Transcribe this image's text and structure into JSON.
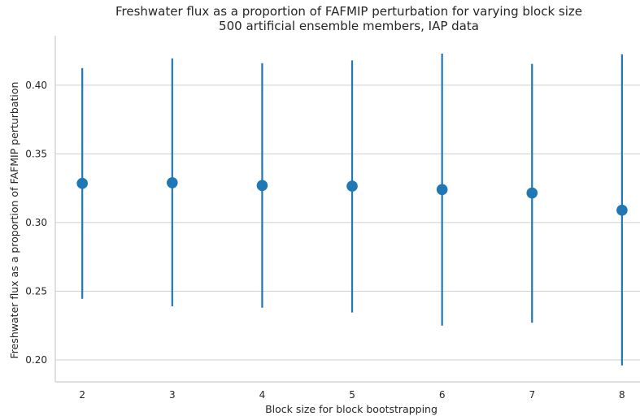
{
  "chart_data": {
    "type": "scatter",
    "title": "Freshwater flux as a proportion of FAFMIP perturbation for varying block size",
    "subtitle": "500 artificial ensemble members, IAP data",
    "xlabel": "Block size for block bootstrapping",
    "ylabel": "Freshwater flux as a proportion of FAFMIP perturbation",
    "x": [
      2,
      3,
      4,
      5,
      6,
      7,
      8
    ],
    "y": [
      0.3285,
      0.329,
      0.327,
      0.3265,
      0.324,
      0.3215,
      0.309
    ],
    "y_lower": [
      0.2445,
      0.239,
      0.238,
      0.2345,
      0.225,
      0.227,
      0.196
    ],
    "y_upper": [
      0.4125,
      0.4195,
      0.416,
      0.418,
      0.423,
      0.4155,
      0.4225
    ],
    "xticks": [
      "2",
      "3",
      "4",
      "5",
      "6",
      "7",
      "8"
    ],
    "yticks": [
      "0.20",
      "0.25",
      "0.30",
      "0.35",
      "0.40"
    ],
    "xlim": [
      1.7,
      8.2
    ],
    "ylim": [
      0.184,
      0.436
    ],
    "grid": "horizontal",
    "color": "#1f77b4"
  }
}
